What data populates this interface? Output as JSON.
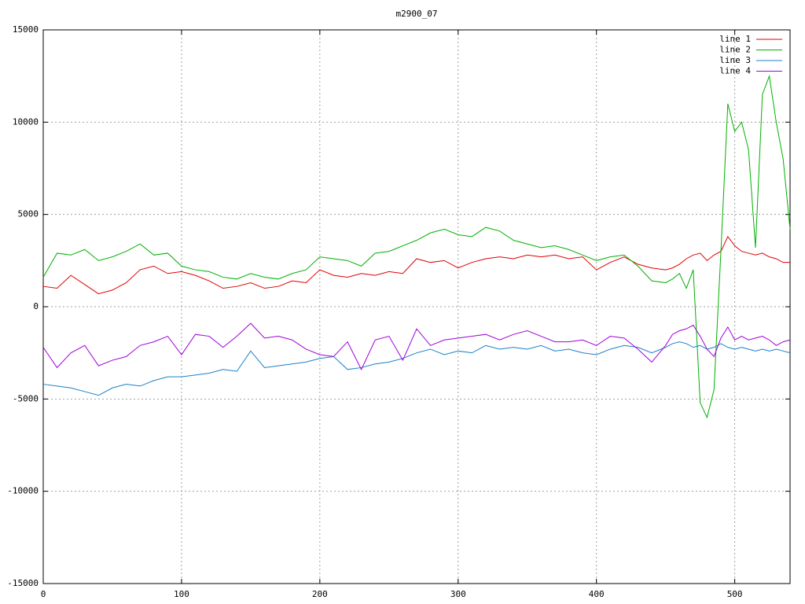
{
  "chart_data": {
    "type": "line",
    "title": "m2900_07",
    "x": [
      0,
      10,
      20,
      30,
      40,
      50,
      60,
      70,
      80,
      90,
      100,
      110,
      120,
      130,
      140,
      150,
      160,
      170,
      180,
      190,
      200,
      210,
      220,
      230,
      240,
      250,
      260,
      270,
      280,
      290,
      300,
      310,
      320,
      330,
      340,
      350,
      360,
      370,
      380,
      390,
      400,
      410,
      420,
      430,
      440,
      450,
      455,
      460,
      465,
      470,
      475,
      480,
      485,
      490,
      495,
      500,
      505,
      510,
      515,
      520,
      525,
      530,
      535,
      540
    ],
    "series": [
      {
        "name": "line 1",
        "color": "#e00000",
        "values": [
          1100,
          1000,
          1700,
          1200,
          700,
          900,
          1300,
          2000,
          2200,
          1800,
          1900,
          1700,
          1400,
          1000,
          1100,
          1300,
          1000,
          1100,
          1400,
          1300,
          2000,
          1700,
          1600,
          1800,
          1700,
          1900,
          1800,
          2600,
          2400,
          2500,
          2100,
          2400,
          2600,
          2700,
          2600,
          2800,
          2700,
          2800,
          2600,
          2700,
          2000,
          2400,
          2700,
          2300,
          2100,
          2000,
          2100,
          2300,
          2600,
          2800,
          2900,
          2500,
          2800,
          3000,
          3800,
          3300,
          3000,
          2900,
          2800,
          2900,
          2700,
          2600,
          2400,
          2400
        ]
      },
      {
        "name": "line 2",
        "color": "#00b000",
        "values": [
          1600,
          2900,
          2800,
          3100,
          2500,
          2700,
          3000,
          3400,
          2800,
          2900,
          2200,
          2000,
          1900,
          1600,
          1500,
          1800,
          1600,
          1500,
          1800,
          2000,
          2700,
          2600,
          2500,
          2200,
          2900,
          3000,
          3300,
          3600,
          4000,
          4200,
          3900,
          3800,
          4300,
          4100,
          3600,
          3400,
          3200,
          3300,
          3100,
          2800,
          2500,
          2700,
          2800,
          2200,
          1400,
          1300,
          1500,
          1800,
          1000,
          2000,
          -5200,
          -6000,
          -4500,
          3000,
          11000,
          9500,
          10000,
          8500,
          3200,
          11500,
          12500,
          10000,
          8000,
          4200
        ]
      },
      {
        "name": "line 3",
        "color": "#1a80c8",
        "values": [
          -4200,
          -4300,
          -4400,
          -4600,
          -4800,
          -4400,
          -4200,
          -4300,
          -4000,
          -3800,
          -3800,
          -3700,
          -3600,
          -3400,
          -3500,
          -2400,
          -3300,
          -3200,
          -3100,
          -3000,
          -2800,
          -2700,
          -3400,
          -3300,
          -3100,
          -3000,
          -2800,
          -2500,
          -2300,
          -2600,
          -2400,
          -2500,
          -2100,
          -2300,
          -2200,
          -2300,
          -2100,
          -2400,
          -2300,
          -2500,
          -2600,
          -2300,
          -2100,
          -2200,
          -2500,
          -2200,
          -2000,
          -1900,
          -2000,
          -2200,
          -2100,
          -2300,
          -2200,
          -2000,
          -2200,
          -2300,
          -2200,
          -2300,
          -2400,
          -2300,
          -2400,
          -2300,
          -2400,
          -2500
        ]
      },
      {
        "name": "line 4",
        "color": "#a000d8",
        "values": [
          -2200,
          -3300,
          -2500,
          -2100,
          -3200,
          -2900,
          -2700,
          -2100,
          -1900,
          -1600,
          -2600,
          -1500,
          -1600,
          -2200,
          -1600,
          -900,
          -1700,
          -1600,
          -1800,
          -2300,
          -2600,
          -2700,
          -1900,
          -3400,
          -1800,
          -1600,
          -2900,
          -1200,
          -2100,
          -1800,
          -1700,
          -1600,
          -1500,
          -1800,
          -1500,
          -1300,
          -1600,
          -1900,
          -1900,
          -1800,
          -2100,
          -1600,
          -1700,
          -2300,
          -3000,
          -2100,
          -1500,
          -1300,
          -1200,
          -1000,
          -1600,
          -2300,
          -2700,
          -1700,
          -1100,
          -1800,
          -1600,
          -1800,
          -1700,
          -1600,
          -1800,
          -2100,
          -1900,
          -1800
        ]
      }
    ],
    "xlim": [
      0,
      540
    ],
    "xticks": [
      0,
      100,
      200,
      300,
      400,
      500
    ],
    "ylim": [
      -15000,
      15000
    ],
    "yticks": [
      -15000,
      -10000,
      -5000,
      0,
      5000,
      10000,
      15000
    ],
    "grid": true,
    "legend": "top-right"
  }
}
